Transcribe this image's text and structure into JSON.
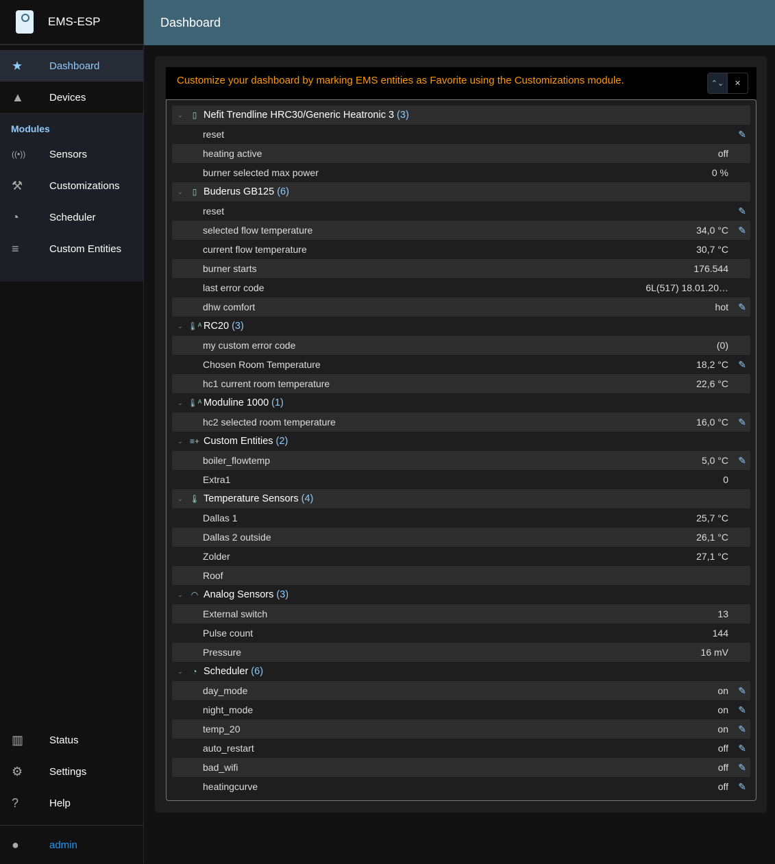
{
  "app": {
    "title": "EMS-ESP"
  },
  "header": {
    "title": "Dashboard"
  },
  "sidebar": {
    "items": [
      {
        "label": "Dashboard",
        "icon": "star-icon"
      },
      {
        "label": "Devices",
        "icon": "category-icon"
      }
    ],
    "modules_heading": "Modules",
    "modules": [
      {
        "label": "Sensors",
        "icon": "sensors-icon"
      },
      {
        "label": "Customizations",
        "icon": "build-icon"
      },
      {
        "label": "Scheduler",
        "icon": "more-time-icon"
      },
      {
        "label": "Custom Entities",
        "icon": "playlist-add-icon"
      }
    ],
    "bottom": [
      {
        "label": "Status",
        "icon": "assessment-icon"
      },
      {
        "label": "Settings",
        "icon": "settings-icon"
      },
      {
        "label": "Help",
        "icon": "live-help-icon"
      }
    ],
    "user": "admin"
  },
  "banner": {
    "message": "Customize your dashboard by marking EMS entities as Favorite using the Customizations module."
  },
  "colors": {
    "accent": "#90caf9",
    "warning": "#ff9800",
    "header": "#3d6375"
  },
  "groups": [
    {
      "name": "Nefit Trendline HRC30/Generic Heatronic 3",
      "count": "(3)",
      "icon": "boiler-icon",
      "rows": [
        {
          "name": "reset",
          "value": "",
          "editable": true
        },
        {
          "name": "heating active",
          "value": "off"
        },
        {
          "name": "burner selected max power",
          "value": "0 %"
        }
      ]
    },
    {
      "name": "Buderus GB125",
      "count": "(6)",
      "icon": "boiler-icon",
      "rows": [
        {
          "name": "reset",
          "value": "",
          "editable": true
        },
        {
          "name": "selected flow temperature",
          "value": "34,0 °C",
          "editable": true
        },
        {
          "name": "current flow temperature",
          "value": "30,7 °C"
        },
        {
          "name": "burner starts",
          "value": "176.544"
        },
        {
          "name": "last error code",
          "value": "6L(517) 18.01.20…"
        },
        {
          "name": "dhw comfort",
          "value": "hot",
          "editable": true
        }
      ]
    },
    {
      "name": "RC20",
      "count": "(3)",
      "icon": "thermostat-icon",
      "rows": [
        {
          "name": "my custom error code",
          "value": "(0)"
        },
        {
          "name": "Chosen Room Temperature",
          "value": "18,2 °C",
          "editable": true
        },
        {
          "name": "hc1 current room temperature",
          "value": "22,6 °C"
        }
      ]
    },
    {
      "name": "Moduline 1000",
      "count": "(1)",
      "icon": "thermostat-icon",
      "rows": [
        {
          "name": "hc2 selected room temperature",
          "value": "16,0 °C",
          "editable": true
        }
      ]
    },
    {
      "name": "Custom Entities",
      "count": "(2)",
      "icon": "playlist-add-icon",
      "rows": [
        {
          "name": "boiler_flowtemp",
          "value": "5,0 °C",
          "editable": true
        },
        {
          "name": "Extra1",
          "value": "0"
        }
      ]
    },
    {
      "name": "Temperature Sensors",
      "count": "(4)",
      "icon": "thermometer-icon",
      "rows": [
        {
          "name": "Dallas 1",
          "value": "25,7 °C"
        },
        {
          "name": "Dallas 2 outside",
          "value": "26,1 °C"
        },
        {
          "name": "Zolder",
          "value": "27,1 °C"
        },
        {
          "name": "Roof",
          "value": ""
        }
      ]
    },
    {
      "name": "Analog Sensors",
      "count": "(3)",
      "icon": "gauge-icon",
      "rows": [
        {
          "name": "External switch",
          "value": "13"
        },
        {
          "name": "Pulse count",
          "value": "144"
        },
        {
          "name": "Pressure",
          "value": "16 mV"
        }
      ]
    },
    {
      "name": "Scheduler",
      "count": "(6)",
      "icon": "more-time-icon",
      "rows": [
        {
          "name": "day_mode",
          "value": "on",
          "editable": true
        },
        {
          "name": "night_mode",
          "value": "on",
          "editable": true
        },
        {
          "name": "temp_20",
          "value": "on",
          "editable": true
        },
        {
          "name": "auto_restart",
          "value": "off",
          "editable": true
        },
        {
          "name": "bad_wifi",
          "value": "off",
          "editable": true
        },
        {
          "name": "heatingcurve",
          "value": "off",
          "editable": true
        }
      ]
    }
  ]
}
